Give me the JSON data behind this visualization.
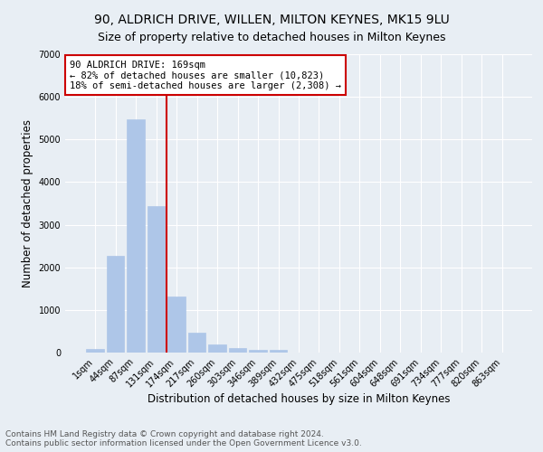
{
  "title1": "90, ALDRICH DRIVE, WILLEN, MILTON KEYNES, MK15 9LU",
  "title2": "Size of property relative to detached houses in Milton Keynes",
  "xlabel": "Distribution of detached houses by size in Milton Keynes",
  "ylabel": "Number of detached properties",
  "footer": "Contains HM Land Registry data © Crown copyright and database right 2024.\nContains public sector information licensed under the Open Government Licence v3.0.",
  "bar_labels": [
    "1sqm",
    "44sqm",
    "87sqm",
    "131sqm",
    "174sqm",
    "217sqm",
    "260sqm",
    "303sqm",
    "346sqm",
    "389sqm",
    "432sqm",
    "475sqm",
    "518sqm",
    "561sqm",
    "604sqm",
    "648sqm",
    "691sqm",
    "734sqm",
    "777sqm",
    "820sqm",
    "863sqm"
  ],
  "bar_values": [
    75,
    2260,
    5470,
    3430,
    1310,
    470,
    195,
    110,
    70,
    55,
    0,
    0,
    0,
    0,
    0,
    0,
    0,
    0,
    0,
    0,
    0
  ],
  "bar_color": "#aec6e8",
  "bar_edge_color": "#aec6e8",
  "vline_color": "#cc0000",
  "vline_pos": 3.5,
  "annotation_text": "90 ALDRICH DRIVE: 169sqm\n← 82% of detached houses are smaller (10,823)\n18% of semi-detached houses are larger (2,308) →",
  "annotation_box_color": "#ffffff",
  "annotation_box_edgecolor": "#cc0000",
  "ylim": [
    0,
    7000
  ],
  "background_color": "#e8eef4",
  "grid_color": "#ffffff",
  "title1_fontsize": 10,
  "title2_fontsize": 9,
  "xlabel_fontsize": 8.5,
  "ylabel_fontsize": 8.5,
  "tick_fontsize": 7,
  "annotation_fontsize": 7.5,
  "footer_fontsize": 6.5
}
